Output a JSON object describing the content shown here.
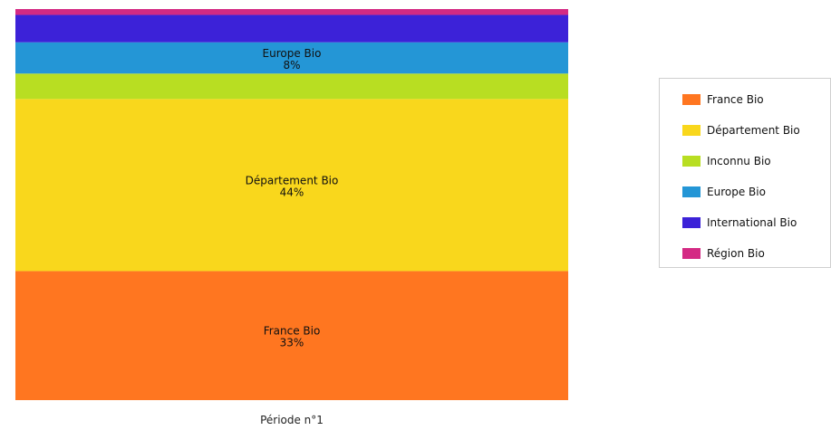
{
  "chart_data": {
    "type": "bar",
    "stacked": true,
    "categories": [
      "Période n°1"
    ],
    "series": [
      {
        "name": "France Bio",
        "values": [
          33
        ],
        "color": "#FF7620",
        "label": "France Bio",
        "label_value": "33%"
      },
      {
        "name": "Département Bio",
        "values": [
          44
        ],
        "color": "#F9D71C",
        "label": "Département Bio",
        "label_value": "44%"
      },
      {
        "name": "Inconnu Bio",
        "values": [
          6.5
        ],
        "color": "#B8DE22",
        "label": "",
        "label_value": ""
      },
      {
        "name": "Europe Bio",
        "values": [
          8
        ],
        "color": "#2496D6",
        "label": "Europe Bio",
        "label_value": "8%"
      },
      {
        "name": "International Bio",
        "values": [
          7
        ],
        "color": "#3C22D8",
        "label": "",
        "label_value": ""
      },
      {
        "name": "Région Bio",
        "values": [
          1.5
        ],
        "color": "#D42A84",
        "label": "",
        "label_value": ""
      }
    ],
    "ylim": [
      0,
      100
    ],
    "legend_position": "right",
    "grid": false
  }
}
